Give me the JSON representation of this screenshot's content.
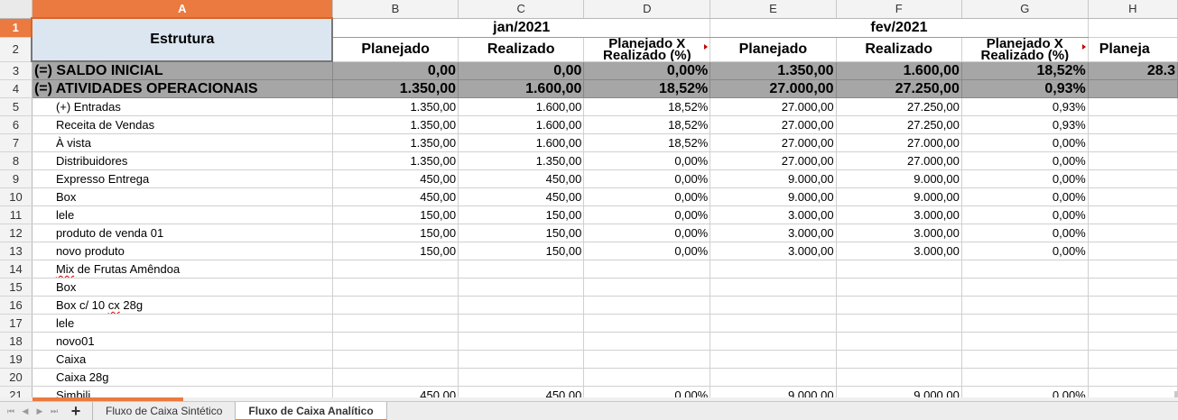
{
  "columns": [
    "A",
    "B",
    "C",
    "D",
    "E",
    "F",
    "G",
    "H"
  ],
  "selected": {
    "column": "A",
    "row": "1"
  },
  "header": {
    "structure_label": "Estrutura",
    "months": [
      "jan/2021",
      "fev/2021"
    ],
    "planned": "Planejado",
    "realized": "Realizado",
    "variance": "Planejado X Realizado (%)",
    "variance_line1": "Planejado X",
    "variance_line2": "Realizado (%)",
    "clipped_h": "Planeja"
  },
  "rows": [
    {
      "row": "1"
    },
    {
      "row": "2"
    },
    {
      "row": "3",
      "label": "(=) SALDO INICIAL",
      "values": [
        "0,00",
        "0,00",
        "0,00%",
        "1.350,00",
        "1.600,00",
        "18,52%"
      ],
      "h": "28.3"
    },
    {
      "row": "4",
      "label": "(=) ATIVIDADES OPERACIONAIS",
      "values": [
        "1.350,00",
        "1.600,00",
        "18,52%",
        "27.000,00",
        "27.250,00",
        "0,93%"
      ],
      "h": ""
    },
    {
      "row": "5",
      "label": "(+) Entradas",
      "values": [
        "1.350,00",
        "1.600,00",
        "18,52%",
        "27.000,00",
        "27.250,00",
        "0,93%"
      ]
    },
    {
      "row": "6",
      "label": "Receita de Vendas",
      "values": [
        "1.350,00",
        "1.600,00",
        "18,52%",
        "27.000,00",
        "27.250,00",
        "0,93%"
      ]
    },
    {
      "row": "7",
      "label": "À vista",
      "values": [
        "1.350,00",
        "1.600,00",
        "18,52%",
        "27.000,00",
        "27.000,00",
        "0,00%"
      ]
    },
    {
      "row": "8",
      "label": "Distribuidores",
      "values": [
        "1.350,00",
        "1.350,00",
        "0,00%",
        "27.000,00",
        "27.000,00",
        "0,00%"
      ]
    },
    {
      "row": "9",
      "label": "Expresso Entrega",
      "values": [
        "450,00",
        "450,00",
        "0,00%",
        "9.000,00",
        "9.000,00",
        "0,00%"
      ]
    },
    {
      "row": "10",
      "label": "Box",
      "values": [
        "450,00",
        "450,00",
        "0,00%",
        "9.000,00",
        "9.000,00",
        "0,00%"
      ]
    },
    {
      "row": "11",
      "label": "lele",
      "values": [
        "150,00",
        "150,00",
        "0,00%",
        "3.000,00",
        "3.000,00",
        "0,00%"
      ]
    },
    {
      "row": "12",
      "label": "produto de venda 01",
      "values": [
        "150,00",
        "150,00",
        "0,00%",
        "3.000,00",
        "3.000,00",
        "0,00%"
      ]
    },
    {
      "row": "13",
      "label": "novo produto",
      "values": [
        "150,00",
        "150,00",
        "0,00%",
        "3.000,00",
        "3.000,00",
        "0,00%"
      ]
    },
    {
      "row": "14",
      "label_pre": "",
      "label_wavy": "Mix",
      "label_post": " de Frutas Amêndoa",
      "values": [
        "",
        "",
        "",
        "",
        "",
        ""
      ]
    },
    {
      "row": "15",
      "label": "Box",
      "values": [
        "",
        "",
        "",
        "",
        "",
        ""
      ]
    },
    {
      "row": "16",
      "label_pre": "Box c/ 10 ",
      "label_wavy": "cx",
      "label_post": " 28g",
      "values": [
        "",
        "",
        "",
        "",
        "",
        ""
      ]
    },
    {
      "row": "17",
      "label": "lele",
      "values": [
        "",
        "",
        "",
        "",
        "",
        ""
      ]
    },
    {
      "row": "18",
      "label": "novo01",
      "values": [
        "",
        "",
        "",
        "",
        "",
        ""
      ]
    },
    {
      "row": "19",
      "label": "Caixa",
      "values": [
        "",
        "",
        "",
        "",
        "",
        ""
      ]
    },
    {
      "row": "20",
      "label": "Caixa 28g",
      "values": [
        "",
        "",
        "",
        "",
        "",
        ""
      ]
    },
    {
      "row": "21",
      "label": "Simbili",
      "values": [
        "450,00",
        "450,00",
        "0,00%",
        "9.000,00",
        "9.000,00",
        "0,00%"
      ]
    }
  ],
  "tabs": {
    "sheet1": "Fluxo de Caixa Sintético",
    "sheet2": "Fluxo de Caixa Analítico",
    "active": "Fluxo de Caixa Analítico"
  },
  "colors": {
    "accent": "#ea7a3f",
    "summary_fill": "#a6a6a6",
    "header_fill": "#dce6f1"
  }
}
